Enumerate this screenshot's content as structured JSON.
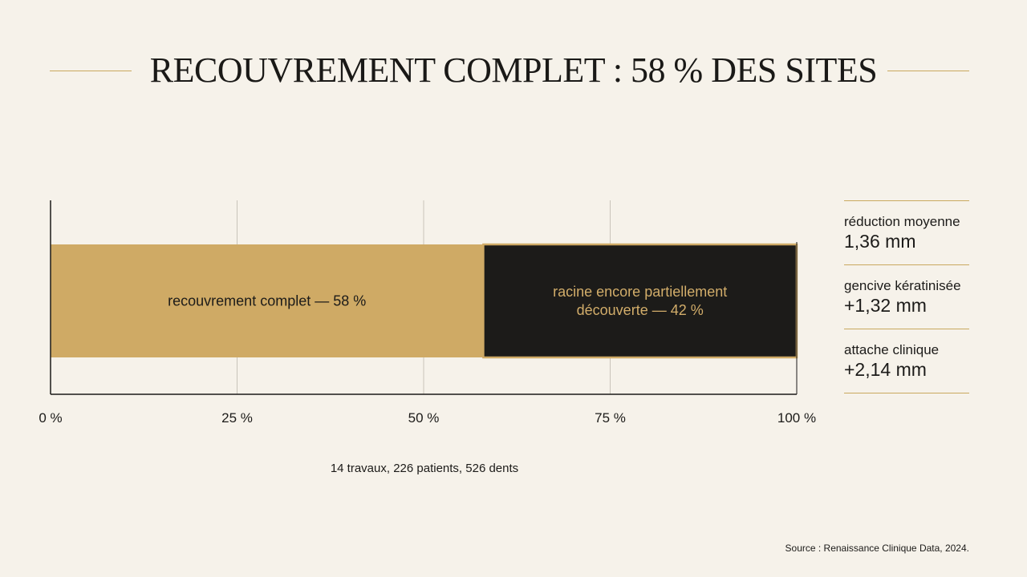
{
  "title": "RECOUVREMENT COMPLET : 58 % DES SITES",
  "chart_data": {
    "type": "bar",
    "orientation": "horizontal",
    "stacked": true,
    "xlim": [
      0,
      100
    ],
    "x_ticks": [
      "0 %",
      "25 %",
      "50 %",
      "75 %",
      "100 %"
    ],
    "x_tick_values": [
      0,
      25,
      50,
      75,
      100
    ],
    "grid": true,
    "segments": [
      {
        "label_lines": [
          "recouvrement complet — 58 %"
        ],
        "value": 58,
        "color": "#cfaa65",
        "text_color": "#1c1b19"
      },
      {
        "label_lines": [
          "racine encore partiellement",
          "découverte — 42 %"
        ],
        "value": 42,
        "color": "#1c1b19",
        "text_color": "#d2ad6a"
      }
    ]
  },
  "kpis": [
    {
      "label": "réduction moyenne",
      "value": "1,36 mm"
    },
    {
      "label": "gencive kératinisée",
      "value": "+1,32 mm"
    },
    {
      "label": "attache clinique",
      "value": "+2,14 mm"
    }
  ],
  "footnote": "14 travaux, 226 patients, 526 dents",
  "source": "Source : Renaissance Clinique Data, 2024.",
  "colors": {
    "accent": "#c9a85e",
    "background": "#f6f2ea",
    "dark": "#1c1b19"
  }
}
